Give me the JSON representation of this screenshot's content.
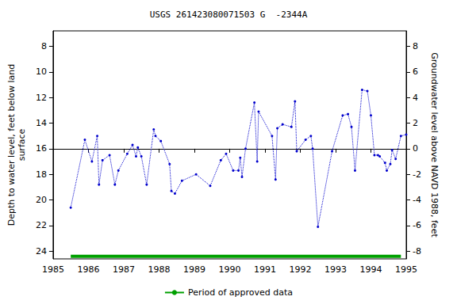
{
  "chart_data": {
    "type": "line",
    "title": "USGS 261423080071503 G  -2344A",
    "x_label": "",
    "y_label": "Depth to water level, feet below land\nsurface",
    "y2_label": "Groundwater level above NAVD 1988, feet",
    "xlim": [
      1985,
      1995
    ],
    "xticks": [
      1985,
      1986,
      1987,
      1988,
      1989,
      1990,
      1991,
      1992,
      1993,
      1994,
      1995
    ],
    "ylim": [
      6.8,
      24.6
    ],
    "yticks": [
      8,
      10,
      12,
      14,
      16,
      18,
      20,
      22,
      24
    ],
    "y2lim": [
      9.2,
      -8.6
    ],
    "y2ticks": [
      8,
      6,
      4,
      2,
      0,
      -2,
      -4,
      -6,
      -8
    ],
    "grid": false,
    "legend": "bottom",
    "series": [
      {
        "color": "#0000cc",
        "marker": "circle",
        "line_style": "dotted",
        "x": [
          1985.5,
          1985.9,
          1986.1,
          1986.25,
          1986.3,
          1986.4,
          1986.6,
          1986.75,
          1986.85,
          1987.1,
          1987.25,
          1987.35,
          1987.4,
          1987.5,
          1987.65,
          1987.85,
          1987.9,
          1988.05,
          1988.3,
          1988.35,
          1988.45,
          1988.65,
          1989.05,
          1989.45,
          1989.75,
          1989.9,
          1990.1,
          1990.25,
          1990.3,
          1990.35,
          1990.45,
          1990.7,
          1990.78,
          1990.82,
          1991.2,
          1991.3,
          1991.35,
          1991.5,
          1991.75,
          1991.85,
          1991.9,
          1992.15,
          1992.3,
          1992.35,
          1992.5,
          1992.9,
          1993.2,
          1993.35,
          1993.45,
          1993.55,
          1993.75,
          1993.9,
          1994.0,
          1994.1,
          1994.2,
          1994.25,
          1994.4,
          1994.45,
          1994.55,
          1994.6,
          1994.7,
          1994.85,
          1995.0
        ],
        "values": [
          20.6,
          15.3,
          17.0,
          15.0,
          18.8,
          16.9,
          16.5,
          18.8,
          17.7,
          16.4,
          15.7,
          16.6,
          15.9,
          16.6,
          18.8,
          14.5,
          15.0,
          15.4,
          17.2,
          19.3,
          19.5,
          18.5,
          18.0,
          18.9,
          16.9,
          16.4,
          17.7,
          17.7,
          16.7,
          18.2,
          16.0,
          12.4,
          17.0,
          13.1,
          15.0,
          18.4,
          14.4,
          14.1,
          14.3,
          12.3,
          16.2,
          15.3,
          15.0,
          16.0,
          22.1,
          16.2,
          13.4,
          13.3,
          14.3,
          17.7,
          11.4,
          11.5,
          13.4,
          16.5,
          16.5,
          16.6,
          17.1,
          17.7,
          17.2,
          16.1,
          16.8,
          15.0,
          14.9
        ]
      },
      {
        "name": "Period of approved data",
        "color": "#00a000",
        "marker": "none",
        "line_style": "solid",
        "x": [
          1985.5,
          1994.85
        ],
        "values": [
          24.4,
          24.4
        ]
      }
    ]
  }
}
